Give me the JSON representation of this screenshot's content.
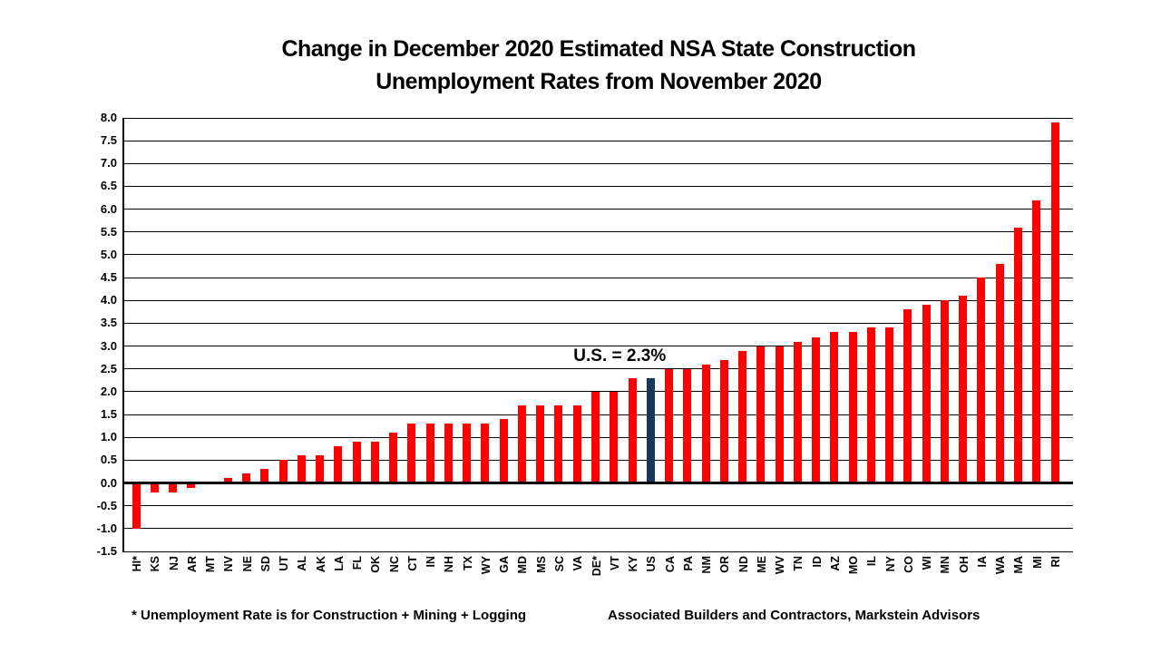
{
  "title": {
    "line1": "Change in December 2020 Estimated NSA State Construction",
    "line2": "Unemployment Rates from November 2020"
  },
  "annotation_label": "U.S. = 2.3%",
  "footer": {
    "left_note": "* Unemployment Rate is for Construction + Mining + Logging",
    "right_note": "Associated Builders and Contractors, Markstein Advisors"
  },
  "colors": {
    "bar": "#FF0000",
    "highlight_bar": "#17375E",
    "axis": "#000000"
  },
  "chart_data": {
    "type": "bar",
    "title": "Change in December 2020 Estimated NSA State Construction Unemployment Rates from November 2020",
    "xlabel": "",
    "ylabel": "",
    "ylim": [
      -1.5,
      8.0
    ],
    "ytick_step": 0.5,
    "yticks": [
      "8.0",
      "7.5",
      "7.0",
      "6.5",
      "6.0",
      "5.5",
      "5.0",
      "4.5",
      "4.0",
      "3.5",
      "3.0",
      "2.5",
      "2.0",
      "1.5",
      "1.0",
      "0.5",
      "0.0",
      "-0.5",
      "-1.0",
      "-1.5"
    ],
    "grid": true,
    "legend": "none",
    "annotation": "U.S. = 2.3%",
    "highlight_index": 28,
    "categories": [
      "HI*",
      "KS",
      "NJ",
      "AR",
      "MT",
      "NV",
      "NE",
      "SD",
      "UT",
      "AL",
      "AK",
      "LA",
      "FL",
      "OK",
      "NC",
      "CT",
      "IN",
      "NH",
      "TX",
      "WY",
      "GA",
      "MD",
      "MS",
      "SC",
      "VA",
      "DE*",
      "VT",
      "KY",
      "US",
      "CA",
      "PA",
      "NM",
      "OR",
      "ND",
      "ME",
      "WV",
      "TN",
      "ID",
      "AZ",
      "MO",
      "IL",
      "NY",
      "CO",
      "WI",
      "MN",
      "OH",
      "IA",
      "WA",
      "MA",
      "MI",
      "RI"
    ],
    "values": [
      -1.0,
      -0.2,
      -0.2,
      -0.1,
      0.0,
      0.1,
      0.2,
      0.3,
      0.5,
      0.6,
      0.6,
      0.8,
      0.9,
      0.9,
      1.1,
      1.3,
      1.3,
      1.3,
      1.3,
      1.3,
      1.4,
      1.7,
      1.7,
      1.7,
      1.7,
      2.0,
      2.0,
      2.3,
      2.3,
      2.5,
      2.5,
      2.6,
      2.7,
      2.9,
      3.0,
      3.0,
      3.1,
      3.2,
      3.3,
      3.3,
      3.4,
      3.4,
      3.8,
      3.9,
      4.0,
      4.1,
      4.5,
      4.8,
      5.6,
      6.2,
      7.9
    ]
  }
}
